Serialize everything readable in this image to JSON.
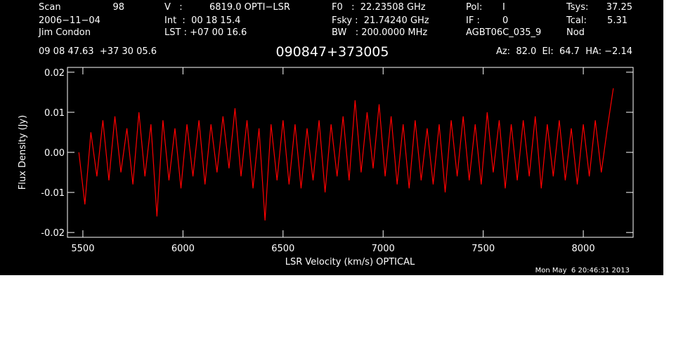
{
  "chart_data": {
    "type": "line",
    "title": "090847+373005",
    "header": [
      "Scan",
      "98",
      "2006−11−04",
      "Jim Condon",
      "V   :",
      "6819.0 OPTI−LSR",
      "Int  :  00 18 15.4",
      "LST : +07 00 16.6",
      "F0   :  22.23508 GHz",
      "Fsky :  21.74240 GHz",
      "BW   : 200.0000 MHz",
      "Pol:",
      "I",
      "IF :",
      "0",
      "AGBT06C_035_9",
      "Tsys:",
      "37.25",
      "Tcal:",
      "5.31",
      "Nod",
      "09 08 47.63  +37 30 05.6",
      "Az:  82.0  El:  64.7  HA: −2.14"
    ],
    "footer": "Mon May  6 20:46:31 2013",
    "x_label": "LSR Velocity (km/s) OPTICAL",
    "y_label": "Flux Density (Jy)",
    "xlim": [
      5423,
      8249
    ],
    "ylim": [
      -0.0212,
      0.0212
    ],
    "xticks": [
      5500,
      6000,
      6500,
      7000,
      7500,
      8000
    ],
    "yticks": [
      -0.02,
      -0.01,
      {
        "value": 0,
        "label": "0.00"
      },
      0.01,
      0.02
    ],
    "x": [
      5480,
      5510,
      5540,
      5570,
      5600,
      5630,
      5660,
      5690,
      5720,
      5750,
      5780,
      5810,
      5840,
      5870,
      5900,
      5930,
      5960,
      5990,
      6020,
      6050,
      6080,
      6110,
      6140,
      6170,
      6200,
      6230,
      6260,
      6290,
      6320,
      6350,
      6380,
      6410,
      6440,
      6470,
      6500,
      6530,
      6560,
      6590,
      6620,
      6650,
      6680,
      6710,
      6740,
      6770,
      6800,
      6830,
      6860,
      6890,
      6920,
      6950,
      6980,
      7010,
      7040,
      7070,
      7100,
      7130,
      7160,
      7190,
      7220,
      7250,
      7280,
      7310,
      7340,
      7370,
      7400,
      7430,
      7460,
      7490,
      7520,
      7550,
      7580,
      7610,
      7640,
      7670,
      7700,
      7730,
      7760,
      7790,
      7820,
      7850,
      7880,
      7910,
      7940,
      7970,
      8000,
      8030,
      8060,
      8090,
      8120,
      8150
    ],
    "series": [
      {
        "color": "#ff0000",
        "values": [
          0.0,
          -0.013,
          0.005,
          -0.006,
          0.008,
          -0.007,
          0.009,
          -0.005,
          0.006,
          -0.008,
          0.01,
          -0.006,
          0.007,
          -0.016,
          0.008,
          -0.007,
          0.006,
          -0.009,
          0.007,
          -0.006,
          0.008,
          -0.008,
          0.007,
          -0.005,
          0.009,
          -0.004,
          0.011,
          -0.006,
          0.008,
          -0.009,
          0.006,
          -0.017,
          0.007,
          -0.007,
          0.008,
          -0.008,
          0.007,
          -0.009,
          0.006,
          -0.007,
          0.008,
          -0.01,
          0.007,
          -0.006,
          0.009,
          -0.007,
          0.013,
          -0.005,
          0.01,
          -0.004,
          0.012,
          -0.006,
          0.009,
          -0.008,
          0.007,
          -0.009,
          0.008,
          -0.007,
          0.006,
          -0.008,
          0.007,
          -0.01,
          0.008,
          -0.006,
          0.009,
          -0.007,
          0.007,
          -0.008,
          0.01,
          -0.005,
          0.008,
          -0.009,
          0.007,
          -0.007,
          0.008,
          -0.006,
          0.009,
          -0.009,
          0.007,
          -0.006,
          0.008,
          -0.007,
          0.006,
          -0.008,
          0.007,
          -0.006,
          0.008,
          -0.005,
          0.006,
          0.016
        ]
      }
    ]
  }
}
